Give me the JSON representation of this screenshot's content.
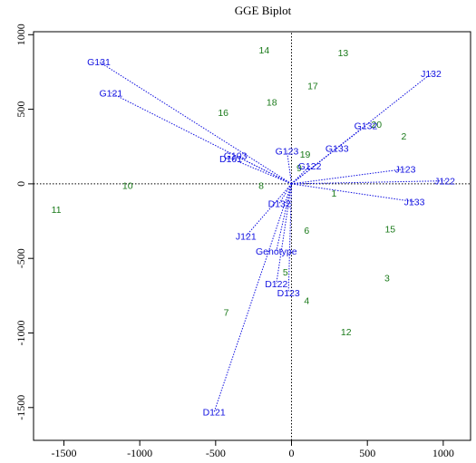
{
  "chart_data": {
    "type": "scatter",
    "title": "GGE Biplot",
    "xlabel": "",
    "ylabel": "",
    "xlim": [
      -1700,
      1180
    ],
    "ylim": [
      -1720,
      1020
    ],
    "x_ticks": [
      -1500,
      -1000,
      -500,
      0,
      500,
      1000
    ],
    "y_ticks": [
      -1500,
      -1000,
      -500,
      0,
      500,
      1000
    ],
    "grid": false,
    "environment_color": "#1a7a1a",
    "genotype_color": "#1010e0",
    "environments": [
      {
        "label": "1",
        "x": 280,
        "y": -60
      },
      {
        "label": "2",
        "x": 740,
        "y": 320
      },
      {
        "label": "3",
        "x": 630,
        "y": -630
      },
      {
        "label": "4",
        "x": 100,
        "y": -780
      },
      {
        "label": "5",
        "x": -40,
        "y": -590
      },
      {
        "label": "6",
        "x": 100,
        "y": -310
      },
      {
        "label": "7",
        "x": -430,
        "y": -860
      },
      {
        "label": "8",
        "x": -200,
        "y": -10
      },
      {
        "label": "9",
        "x": 50,
        "y": 110
      },
      {
        "label": "10",
        "x": -1080,
        "y": -10
      },
      {
        "label": "11",
        "x": -1550,
        "y": -170
      },
      {
        "label": "12",
        "x": 360,
        "y": -990
      },
      {
        "label": "13",
        "x": 340,
        "y": 880
      },
      {
        "label": "14",
        "x": -180,
        "y": 900
      },
      {
        "label": "15",
        "x": 650,
        "y": -300
      },
      {
        "label": "16",
        "x": -450,
        "y": 480
      },
      {
        "label": "17",
        "x": 140,
        "y": 660
      },
      {
        "label": "18",
        "x": -130,
        "y": 550
      },
      {
        "label": "19",
        "x": 90,
        "y": 200
      },
      {
        "label": "20",
        "x": 560,
        "y": 400
      }
    ],
    "genotypes": [
      {
        "label": "G131",
        "x": -1270,
        "y": 820
      },
      {
        "label": "G121",
        "x": -1190,
        "y": 610
      },
      {
        "label": "J132",
        "x": 920,
        "y": 740
      },
      {
        "label": "G132",
        "x": 490,
        "y": 390
      },
      {
        "label": "G133",
        "x": 300,
        "y": 240
      },
      {
        "label": "G123",
        "x": -30,
        "y": 220
      },
      {
        "label": "G122",
        "x": 120,
        "y": 120
      },
      {
        "label": "G103",
        "x": -370,
        "y": 190
      },
      {
        "label": "D101",
        "x": -400,
        "y": 170
      },
      {
        "label": "J123",
        "x": 750,
        "y": 100
      },
      {
        "label": "J122",
        "x": 1010,
        "y": 20
      },
      {
        "label": "J133",
        "x": 810,
        "y": -120
      },
      {
        "label": "D132",
        "x": -80,
        "y": -130
      },
      {
        "label": "J121",
        "x": -300,
        "y": -350
      },
      {
        "label": "Genotype",
        "x": -100,
        "y": -450
      },
      {
        "label": "D122",
        "x": -100,
        "y": -670
      },
      {
        "label": "D123",
        "x": -20,
        "y": -730
      },
      {
        "label": "D121",
        "x": -510,
        "y": -1530
      }
    ]
  }
}
